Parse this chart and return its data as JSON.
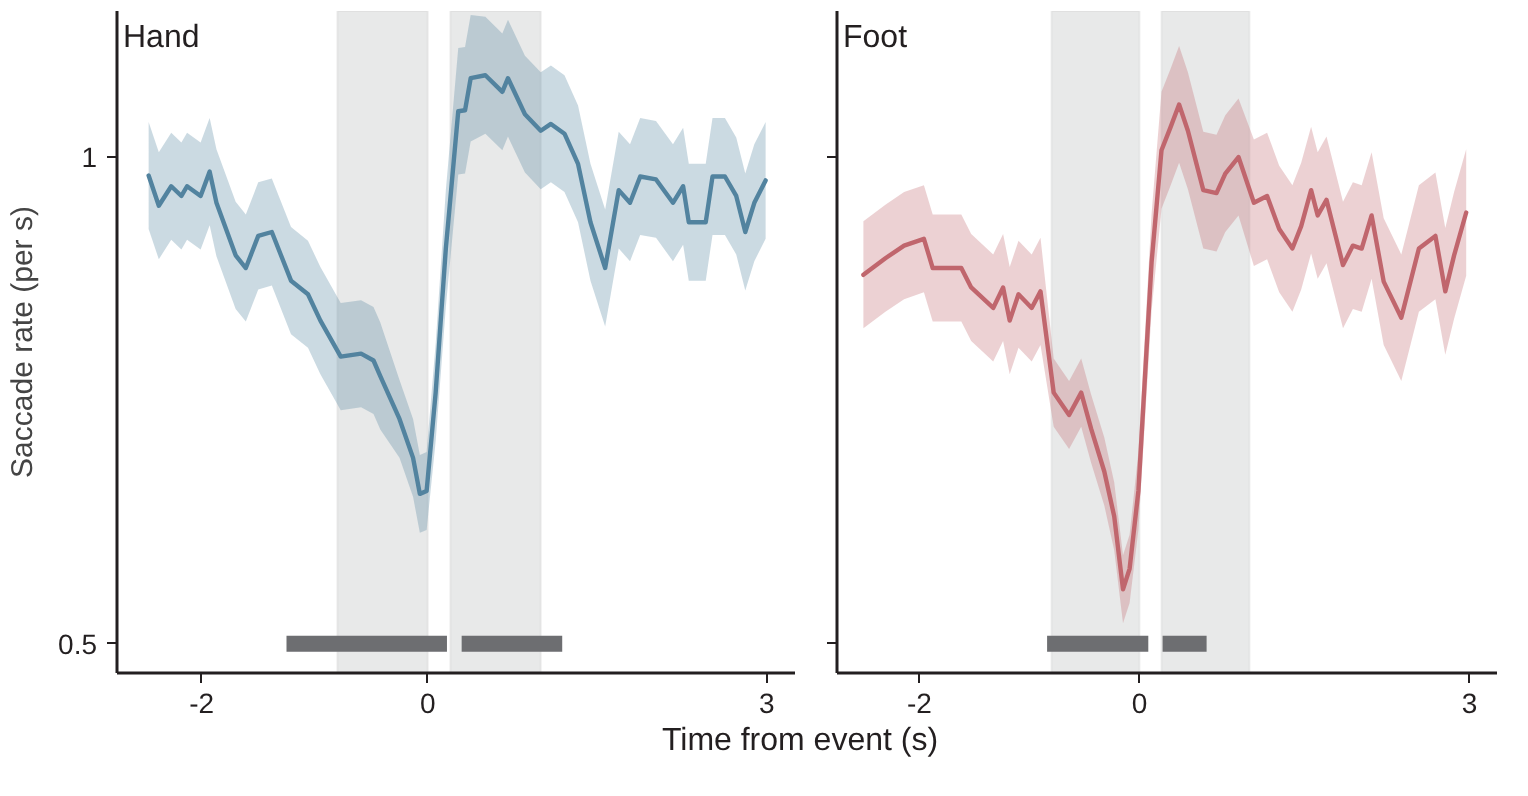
{
  "chart_data": [
    {
      "type": "line",
      "title": "Hand",
      "ylabel": "Saccade rate (per s)",
      "xlabel": "Time from event (s)",
      "xlim": [
        -2.75,
        3.25
      ],
      "xticks": [
        -2,
        0,
        3
      ],
      "ylim": [
        0.47,
        1.15
      ],
      "yticks": [
        0.5,
        1
      ],
      "grid": false,
      "bands": [
        {
          "axis": "x",
          "from": -0.8,
          "to": 0,
          "color": "#e8e9e9"
        },
        {
          "axis": "x",
          "from": 0.2,
          "to": 1.0,
          "color": "#e8e9e9"
        }
      ],
      "series": [
        {
          "color": "#52839f",
          "x": [
            -2.47,
            -2.38,
            -2.27,
            -2.18,
            -2.13,
            -2.01,
            -1.93,
            -1.87,
            -1.7,
            -1.61,
            -1.5,
            -1.38,
            -1.21,
            -1.06,
            -0.95,
            -0.77,
            -0.59,
            -0.48,
            -0.42,
            -0.25,
            -0.13,
            -0.07,
            -0.01,
            0.07,
            0.16,
            0.27,
            0.33,
            0.38,
            0.51,
            0.66,
            0.71,
            0.86,
            1.0,
            1.09,
            1.21,
            1.33,
            1.44,
            1.57,
            1.69,
            1.79,
            1.88,
            2.02,
            2.17,
            2.26,
            2.31,
            2.46,
            2.52,
            2.63,
            2.73,
            2.81,
            2.89,
            2.99
          ],
          "values": [
            0.981,
            0.95,
            0.97,
            0.96,
            0.97,
            0.96,
            0.985,
            0.953,
            0.899,
            0.886,
            0.919,
            0.923,
            0.873,
            0.859,
            0.832,
            0.795,
            0.798,
            0.791,
            0.775,
            0.731,
            0.691,
            0.654,
            0.657,
            0.758,
            0.906,
            1.047,
            1.048,
            1.081,
            1.084,
            1.067,
            1.081,
            1.044,
            1.027,
            1.034,
            1.024,
            0.993,
            0.933,
            0.886,
            0.966,
            0.953,
            0.98,
            0.977,
            0.953,
            0.97,
            0.933,
            0.933,
            0.98,
            0.98,
            0.96,
            0.923,
            0.953,
            0.976
          ],
          "upper": [
            1.036,
            1.005,
            1.025,
            1.015,
            1.025,
            1.015,
            1.04,
            1.008,
            0.954,
            0.941,
            0.974,
            0.978,
            0.928,
            0.914,
            0.887,
            0.85,
            0.853,
            0.846,
            0.83,
            0.771,
            0.731,
            0.694,
            0.697,
            0.808,
            0.966,
            1.112,
            1.113,
            1.146,
            1.144,
            1.127,
            1.141,
            1.104,
            1.087,
            1.094,
            1.084,
            1.053,
            0.993,
            0.946,
            1.026,
            1.013,
            1.04,
            1.037,
            1.013,
            1.03,
            0.993,
            0.993,
            1.04,
            1.04,
            1.02,
            0.983,
            1.013,
            1.036
          ],
          "lower": [
            0.926,
            0.895,
            0.915,
            0.905,
            0.915,
            0.905,
            0.93,
            0.898,
            0.844,
            0.831,
            0.864,
            0.868,
            0.818,
            0.804,
            0.777,
            0.74,
            0.743,
            0.736,
            0.72,
            0.691,
            0.651,
            0.614,
            0.617,
            0.708,
            0.846,
            0.982,
            0.983,
            1.016,
            1.024,
            1.007,
            1.021,
            0.984,
            0.967,
            0.974,
            0.964,
            0.933,
            0.873,
            0.826,
            0.906,
            0.893,
            0.92,
            0.917,
            0.893,
            0.91,
            0.873,
            0.873,
            0.92,
            0.92,
            0.9,
            0.863,
            0.893,
            0.916
          ]
        },
        {
          "color": "#6d6e71",
          "x": [
            -1.25,
            0.17,
            0.24,
            0.3,
            1.19
          ],
          "values": [
            0.5,
            0.5,
            null,
            0.5,
            0.5
          ]
        }
      ]
    },
    {
      "type": "line",
      "title": "Foot",
      "xlim": [
        -2.75,
        3.25
      ],
      "xticks": [
        -2,
        0,
        3
      ],
      "ylim": [
        0.47,
        1.15
      ],
      "yticks": [
        0.5,
        1
      ],
      "tick_labels": "x",
      "grid": false,
      "bands": [
        {
          "axis": "x",
          "from": -0.8,
          "to": 0,
          "color": "#e8e9e9"
        },
        {
          "axis": "x",
          "from": 0.2,
          "to": 1.0,
          "color": "#e8e9e9"
        }
      ],
      "series": [
        {
          "color": "#c0666d",
          "x": [
            -2.51,
            -2.31,
            -2.14,
            -1.96,
            -1.88,
            -1.62,
            -1.53,
            -1.33,
            -1.24,
            -1.18,
            -1.1,
            -0.98,
            -0.9,
            -0.78,
            -0.64,
            -0.53,
            -0.44,
            -0.32,
            -0.23,
            -0.15,
            -0.09,
            -0.01,
            0.11,
            0.2,
            0.28,
            0.36,
            0.44,
            0.58,
            0.7,
            0.78,
            0.9,
            1.04,
            1.16,
            1.27,
            1.39,
            1.47,
            1.56,
            1.62,
            1.7,
            1.85,
            1.94,
            2.02,
            2.11,
            2.22,
            2.38,
            2.54,
            2.69,
            2.78,
            2.86,
            2.97
          ],
          "values": [
            0.879,
            0.896,
            0.909,
            0.916,
            0.886,
            0.886,
            0.866,
            0.845,
            0.866,
            0.832,
            0.859,
            0.845,
            0.862,
            0.758,
            0.735,
            0.758,
            0.721,
            0.677,
            0.631,
            0.556,
            0.577,
            0.657,
            0.892,
            1.007,
            1.03,
            1.054,
            1.027,
            0.966,
            0.963,
            0.983,
            1.0,
            0.953,
            0.96,
            0.926,
            0.906,
            0.929,
            0.966,
            0.94,
            0.956,
            0.889,
            0.909,
            0.906,
            0.94,
            0.872,
            0.835,
            0.906,
            0.919,
            0.862,
            0.899,
            0.943
          ],
          "upper": [
            0.934,
            0.951,
            0.964,
            0.971,
            0.941,
            0.941,
            0.921,
            0.9,
            0.921,
            0.887,
            0.914,
            0.9,
            0.917,
            0.793,
            0.77,
            0.793,
            0.756,
            0.712,
            0.666,
            0.591,
            0.612,
            0.697,
            0.942,
            1.067,
            1.09,
            1.114,
            1.087,
            1.026,
            1.023,
            1.043,
            1.06,
            1.018,
            1.025,
            0.991,
            0.971,
            0.994,
            1.031,
            1.005,
            1.021,
            0.954,
            0.974,
            0.971,
            1.005,
            0.937,
            0.9,
            0.971,
            0.984,
            0.927,
            0.964,
            1.008
          ],
          "lower": [
            0.824,
            0.841,
            0.854,
            0.861,
            0.831,
            0.831,
            0.811,
            0.79,
            0.811,
            0.777,
            0.804,
            0.79,
            0.807,
            0.723,
            0.7,
            0.723,
            0.686,
            0.642,
            0.596,
            0.521,
            0.542,
            0.617,
            0.842,
            0.947,
            0.97,
            0.994,
            0.967,
            0.906,
            0.903,
            0.923,
            0.94,
            0.888,
            0.895,
            0.861,
            0.841,
            0.864,
            0.901,
            0.875,
            0.891,
            0.824,
            0.844,
            0.841,
            0.875,
            0.807,
            0.77,
            0.841,
            0.854,
            0.797,
            0.834,
            0.878
          ]
        },
        {
          "color": "#6d6e71",
          "x": [
            -0.84,
            0.08,
            0.15,
            0.21,
            0.61
          ],
          "values": [
            0.5,
            0.5,
            null,
            0.5,
            0.5
          ]
        }
      ]
    }
  ]
}
